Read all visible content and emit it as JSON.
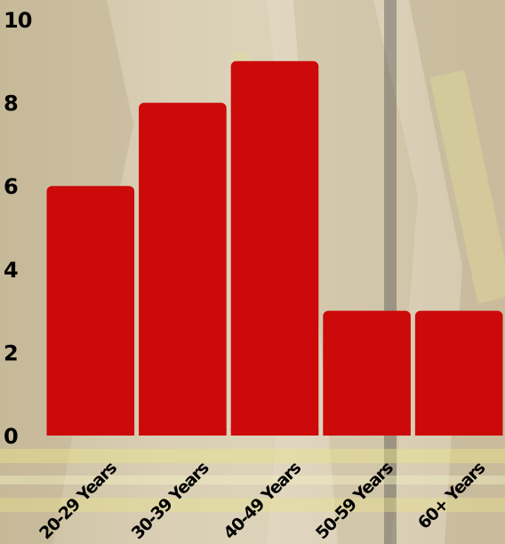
{
  "chart_data": {
    "type": "bar",
    "categories": [
      "20-29 Years",
      "30-39 Years",
      "40-49 Years",
      "50-59 Years",
      "60+ Years"
    ],
    "values": [
      6,
      8,
      9,
      3,
      3
    ],
    "ylim": [
      0,
      10
    ],
    "yticks": [
      0,
      2,
      4,
      6,
      8,
      10
    ],
    "title": "",
    "xlabel": "",
    "ylabel": "",
    "grid": false,
    "legend": "none",
    "bar_color": "#cc0a0a",
    "text_color": "#000000"
  }
}
